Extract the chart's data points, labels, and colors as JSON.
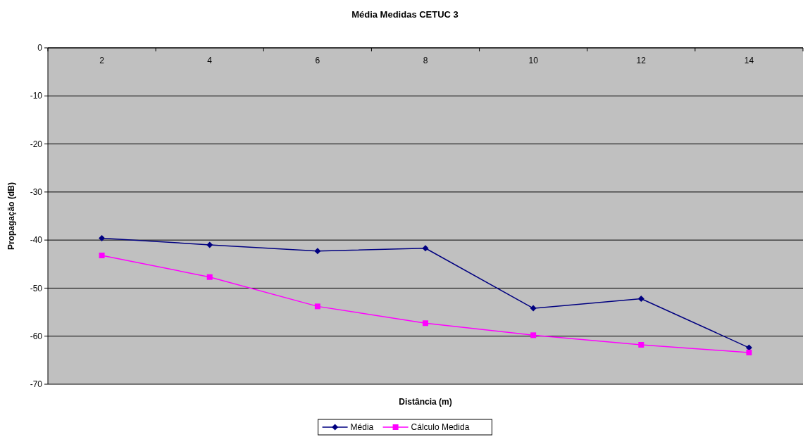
{
  "chart_data": {
    "type": "line",
    "title": "Média Medidas CETUC 3",
    "xlabel": "Distância (m)",
    "ylabel": "Propagação (dB)",
    "categories": [
      "2",
      "4",
      "6",
      "8",
      "10",
      "12",
      "14"
    ],
    "series": [
      {
        "name": "Média",
        "color": "#000080",
        "marker": "diamond",
        "values": [
          -39.6,
          -41.0,
          -42.3,
          -41.7,
          -54.2,
          -52.2,
          -62.4
        ]
      },
      {
        "name": "Cálculo Medida",
        "color": "#ff00ff",
        "marker": "square",
        "values": [
          -43.2,
          -47.7,
          -53.8,
          -57.3,
          -59.8,
          -61.8,
          -63.4
        ]
      }
    ],
    "ylim": [
      -70,
      0
    ],
    "yticks": [
      -70,
      -60,
      -50,
      -40,
      -30,
      -20,
      -10,
      0
    ],
    "grid": "y",
    "legend": "bottom"
  }
}
